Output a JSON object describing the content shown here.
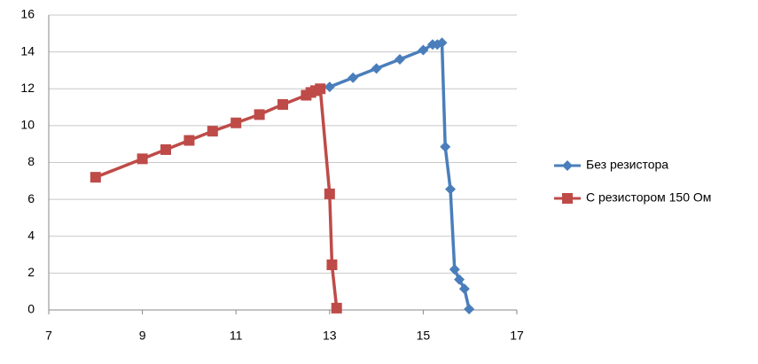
{
  "chart_data": {
    "type": "scatter",
    "xlim": [
      7,
      17
    ],
    "xticks": [
      7,
      9,
      11,
      13,
      15,
      17
    ],
    "ylim": [
      0,
      16
    ],
    "yticks": [
      0,
      2,
      4,
      6,
      8,
      10,
      12,
      14,
      16
    ],
    "grid": true,
    "legend": "right",
    "series": [
      {
        "name": "Без резистора",
        "color": "#4a7ebb",
        "marker": "diamond",
        "x": [
          13.0,
          13.5,
          14.0,
          14.5,
          15.0,
          15.2,
          15.3,
          15.4,
          15.47,
          15.58,
          15.67,
          15.77,
          15.88,
          15.98
        ],
        "values": [
          12.1,
          12.6,
          13.1,
          13.6,
          14.1,
          14.4,
          14.4,
          14.5,
          8.85,
          6.55,
          2.2,
          1.65,
          1.15,
          0.05
        ]
      },
      {
        "name": "С резистором  150 Ом",
        "color": "#be4b48",
        "marker": "square",
        "x": [
          8.0,
          9.0,
          9.5,
          10.0,
          10.5,
          11.0,
          11.5,
          12.0,
          12.5,
          12.6,
          12.7,
          12.8,
          13.0,
          13.05,
          13.15
        ],
        "values": [
          7.2,
          8.2,
          8.7,
          9.2,
          9.7,
          10.15,
          10.6,
          11.15,
          11.65,
          11.8,
          11.9,
          12.0,
          6.3,
          2.45,
          0.1
        ]
      }
    ]
  }
}
